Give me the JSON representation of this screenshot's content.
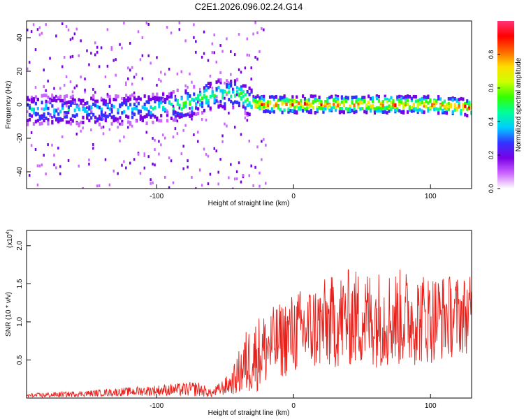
{
  "title": "C2E1.2026.096.02.24.G14",
  "chart_data": [
    {
      "type": "heatmap",
      "xlabel": "Height of straight line (km)",
      "ylabel": "Frequency (Hz)",
      "xlim": [
        -195,
        130
      ],
      "ylim": [
        -50,
        50
      ],
      "xticks": [
        -100,
        0,
        100
      ],
      "yticks": [
        -40,
        -20,
        0,
        20,
        40
      ],
      "colorbar": {
        "label": "Normalized spectral amplitude",
        "range": [
          0,
          1
        ],
        "ticks": [
          "0.0",
          "0.2",
          "0.4",
          "0.6",
          "0.8"
        ],
        "colors": [
          "#ffffff",
          "#cc66ff",
          "#7a00e6",
          "#3333ff",
          "#00ccff",
          "#00ff99",
          "#33ff00",
          "#ccff00",
          "#ffdd00",
          "#ff6600",
          "#ff0000",
          "#ff3377"
        ]
      },
      "ridge": {
        "x": [
          -195,
          -150,
          -100,
          -80,
          -60,
          -40,
          -30,
          -20,
          0,
          50,
          100,
          130
        ],
        "freq": [
          -3,
          -4,
          -2,
          0,
          6,
          6,
          0,
          0,
          0,
          0,
          0,
          -2
        ]
      }
    },
    {
      "type": "line",
      "xlabel": "Height of straight line (km)",
      "ylabel": "SNR (10 * v/v)",
      "multiplier_label": "(x10",
      "multiplier_exp": "4",
      "xlim": [
        -195,
        130
      ],
      "ylim": [
        0,
        2.2
      ],
      "xticks": [
        -100,
        0,
        100
      ],
      "yticks": [
        "0.5",
        "1.0",
        "1.5",
        "2.0"
      ],
      "line_color": "#e8201a",
      "envelope": {
        "x": [
          -195,
          -150,
          -100,
          -70,
          -60,
          -45,
          -35,
          -25,
          -10,
          0,
          20,
          40,
          60,
          80,
          100,
          130
        ],
        "mean": [
          0.03,
          0.06,
          0.1,
          0.12,
          0.06,
          0.2,
          0.45,
          0.6,
          0.75,
          0.85,
          0.95,
          1.05,
          1.05,
          1.05,
          1.05,
          1.1
        ],
        "spread": [
          0.03,
          0.04,
          0.07,
          0.1,
          0.05,
          0.15,
          0.45,
          0.5,
          0.5,
          0.55,
          0.6,
          0.65,
          0.65,
          0.65,
          0.6,
          0.5
        ]
      }
    }
  ]
}
